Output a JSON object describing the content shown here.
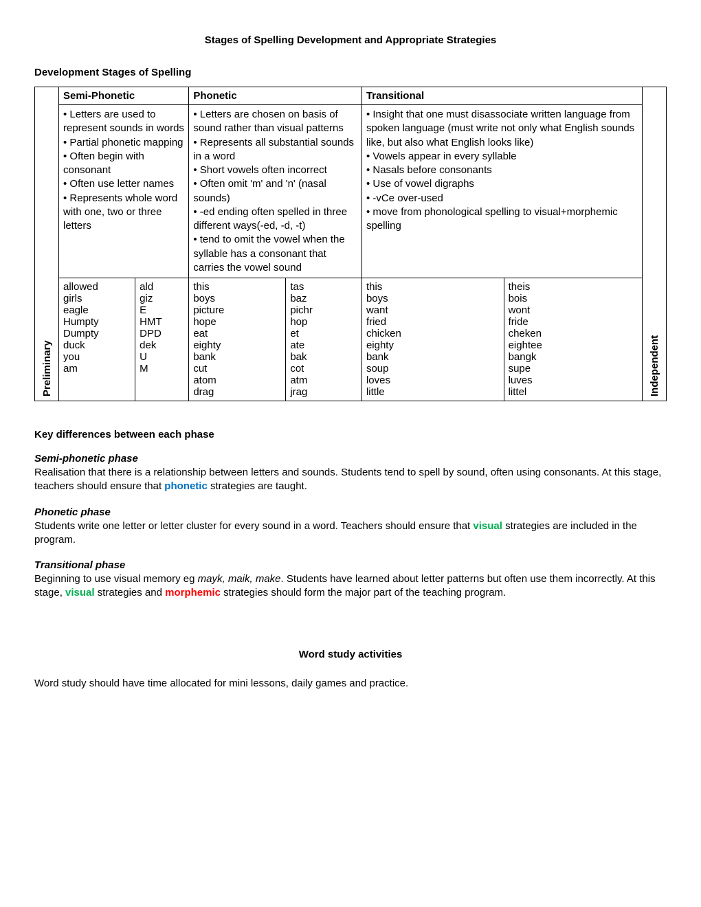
{
  "title": "Stages of Spelling Development and Appropriate Strategies",
  "h1": "Development Stages of Spelling",
  "table": {
    "left_label": "Preliminary",
    "right_label": "Independent",
    "cols": [
      {
        "header": "Semi-Phonetic",
        "desc": "• Letters are used to represent sounds in words\n• Partial phonetic mapping\n• Often begin with consonant\n• Often use letter names\n• Represents whole word with one, two or three letters",
        "ex_left": "allowed\ngirls\neagle\nHumpty\nDumpty\nduck\nyou\nam",
        "ex_right": "ald\ngiz\nE\nHMT\nDPD\ndek\nU\nM"
      },
      {
        "header": "Phonetic",
        "desc": "• Letters are chosen on basis of sound rather than visual patterns\n• Represents all substantial sounds in a word\n• Short vowels often incorrect\n• Often omit 'm' and 'n' (nasal sounds)\n• -ed ending often spelled in three different ways(-ed, -d, -t)\n• tend to omit the vowel when the syllable has a consonant that carries the vowel sound",
        "ex_left": "this\nboys\npicture\nhope\neat\neighty\nbank\ncut\natom\ndrag",
        "ex_right": "tas\nbaz\npichr\nhop\net\nate\nbak\ncot\natm\njrag"
      },
      {
        "header": "Transitional",
        "desc": "• Insight that one must disassociate written language from spoken language (must write not only what English sounds like, but also what English looks like)\n• Vowels appear in every syllable\n• Nasals before consonants\n• Use of vowel digraphs\n• -vCe over-used\n• move from phonological spelling to visual+morphemic spelling",
        "ex_left": "this\nboys\nwant\nfried\nchicken\neighty\nbank\nsoup\nloves\nlittle",
        "ex_right": "theis\nbois\nwont\nfride\ncheken\neightee\nbangk\nsupe\nluves\nlittel"
      }
    ]
  },
  "key_diff_heading": "Key differences between each phase",
  "phases": {
    "semi": {
      "heading": "Semi-phonetic phase",
      "body_pre": "Realisation that there is a relationship between letters and sounds. Students tend to spell by sound, often using consonants. At this stage, teachers should ensure that ",
      "strategy1": "phonetic",
      "body_post": " strategies are taught."
    },
    "phon": {
      "heading": "Phonetic phase",
      "body_pre": "Students write one letter or letter cluster for every sound in a word. Teachers should ensure that ",
      "strategy1": "visual",
      "body_post": " strategies are included in the program."
    },
    "trans": {
      "heading": "Transitional phase",
      "body_pre1": "Beginning to use visual memory eg ",
      "italic": "mayk, maik, make",
      "body_pre2": ". Students have learned about letter patterns but often use them incorrectly. At this stage, ",
      "strategy1": "visual",
      "mid": " strategies and ",
      "strategy2": "morphemic",
      "body_post": " strategies should form the major part of the teaching program."
    }
  },
  "ws_title": "Word study activities",
  "ws_body": "Word study should have time allocated for mini lessons, daily games and practice."
}
